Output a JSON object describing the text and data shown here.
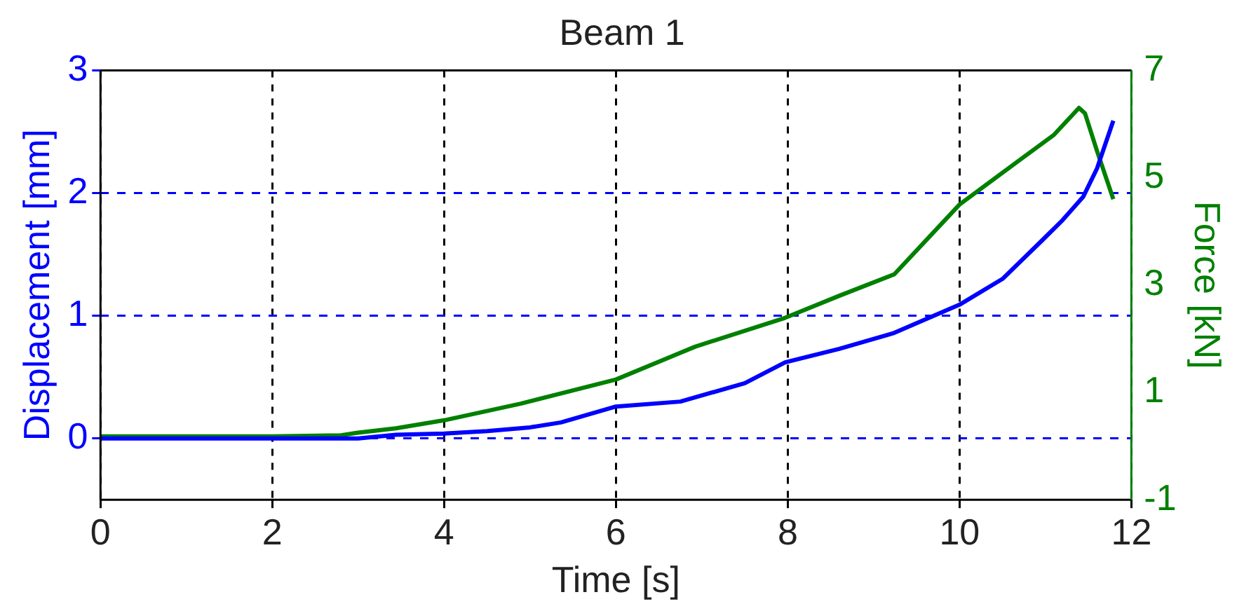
{
  "chart_data": {
    "type": "line",
    "title": "Beam 1",
    "xlabel": "Time [s]",
    "ylabel": "Displacement [mm]",
    "y2label": "Force [kN]",
    "xlim": [
      0,
      12
    ],
    "xticks": [
      0,
      2,
      4,
      6,
      8,
      10,
      12
    ],
    "ylim": [
      -0.5,
      3
    ],
    "yticks": [
      0,
      1,
      2,
      3
    ],
    "y2lim": [
      -1,
      7
    ],
    "y2ticks": [
      -1,
      1,
      3,
      5,
      7
    ],
    "grid": true,
    "legend": false,
    "marker": "none",
    "series": [
      {
        "color": "#0000ff",
        "x": [
          0,
          1,
          2,
          3,
          3.44,
          4,
          4.5,
          5,
          5.36,
          6,
          6.75,
          7.5,
          7.97,
          8.6,
          9.24,
          10,
          10.5,
          10.97,
          11.2,
          11.44,
          11.6,
          11.79
        ],
        "values": [
          0,
          0,
          0,
          0,
          0.03,
          0.04,
          0.06,
          0.09,
          0.13,
          0.26,
          0.3,
          0.45,
          0.62,
          0.73,
          0.86,
          1.09,
          1.3,
          1.62,
          1.78,
          1.97,
          2.2,
          2.59
        ]
      },
      {
        "color": "#008000",
        "axis": "y2",
        "x": [
          0,
          1,
          2,
          2.8,
          3,
          3.44,
          4,
          4.89,
          6,
          6.92,
          7.97,
          8.6,
          9.24,
          10,
          10.7,
          11.1,
          11.39,
          11.46,
          11.6,
          11.79
        ],
        "values": [
          0.18,
          0.18,
          0.18,
          0.2,
          0.25,
          0.33,
          0.48,
          0.79,
          1.24,
          1.85,
          2.39,
          2.8,
          3.2,
          4.5,
          5.33,
          5.8,
          6.3,
          6.2,
          5.5,
          4.6
        ]
      }
    ]
  }
}
